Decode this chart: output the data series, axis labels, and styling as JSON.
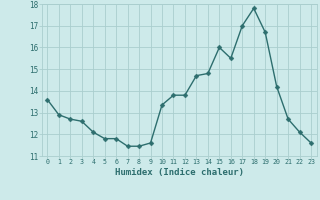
{
  "x": [
    0,
    1,
    2,
    3,
    4,
    5,
    6,
    7,
    8,
    9,
    10,
    11,
    12,
    13,
    14,
    15,
    16,
    17,
    18,
    19,
    20,
    21,
    22,
    23
  ],
  "y": [
    13.6,
    12.9,
    12.7,
    12.6,
    12.1,
    11.8,
    11.8,
    11.45,
    11.45,
    11.6,
    13.35,
    13.8,
    13.8,
    14.7,
    14.8,
    16.0,
    15.5,
    17.0,
    17.8,
    16.7,
    14.2,
    12.7,
    12.1,
    11.6
  ],
  "line_color": "#2d6e6e",
  "marker_color": "#2d6e6e",
  "bg_color": "#cdeaea",
  "grid_color": "#aacece",
  "xlabel": "Humidex (Indice chaleur)",
  "ylim": [
    11,
    18
  ],
  "xlim": [
    -0.5,
    23.5
  ],
  "yticks": [
    11,
    12,
    13,
    14,
    15,
    16,
    17,
    18
  ],
  "xticks": [
    0,
    1,
    2,
    3,
    4,
    5,
    6,
    7,
    8,
    9,
    10,
    11,
    12,
    13,
    14,
    15,
    16,
    17,
    18,
    19,
    20,
    21,
    22,
    23
  ],
  "font_color": "#2d6e6e",
  "linewidth": 1.0,
  "markersize": 2.5
}
